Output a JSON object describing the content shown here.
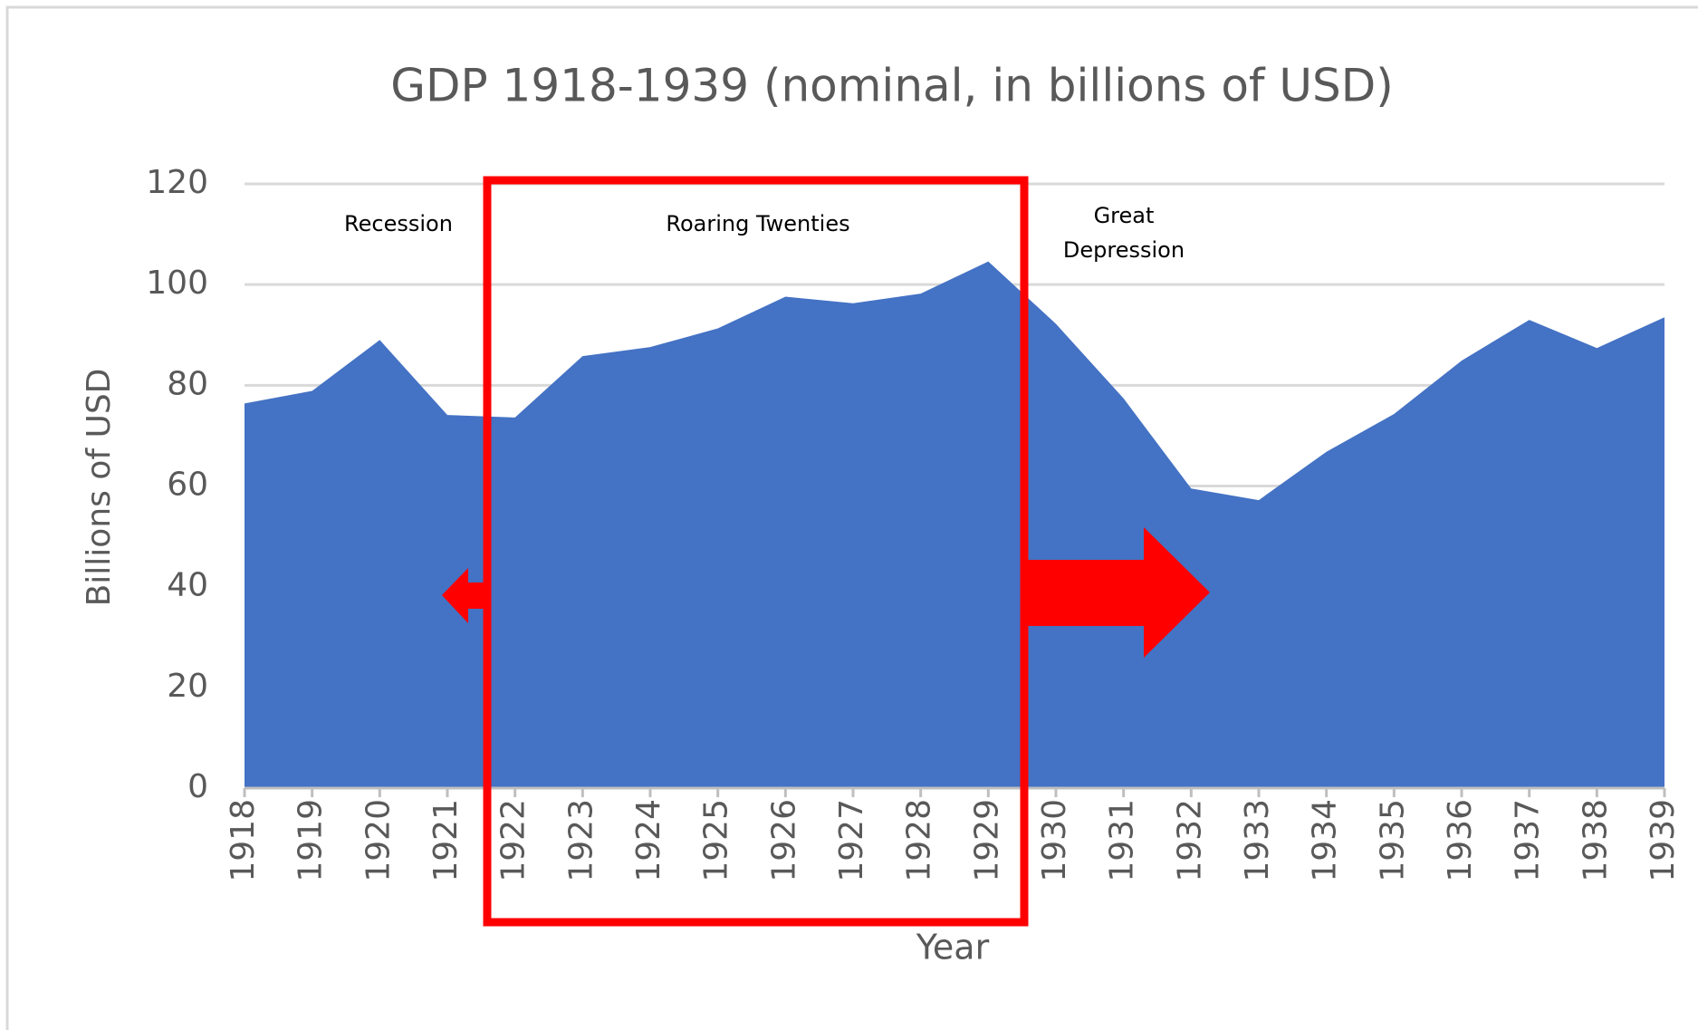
{
  "chart_data": {
    "type": "area",
    "title": "GDP 1918-1939 (nominal, in billions of USD)",
    "x_label": "Year",
    "y_label": "Billions of USD",
    "x": [
      1918,
      1919,
      1920,
      1921,
      1922,
      1923,
      1924,
      1925,
      1926,
      1927,
      1928,
      1929,
      1930,
      1931,
      1932,
      1933,
      1934,
      1935,
      1936,
      1937,
      1938,
      1939
    ],
    "series": [
      {
        "name": "GDP",
        "color": "#4472c4",
        "values": [
          76.4,
          78.9,
          89,
          74.1,
          73.6,
          85.8,
          87.6,
          91.3,
          97.6,
          96.3,
          98.2,
          104.6,
          92.2,
          77.4,
          59.5,
          57.2,
          66.8,
          74.3,
          84.9,
          93,
          87.4,
          93.5
        ]
      }
    ],
    "xlim": [
      1918,
      1939
    ],
    "xticks": [
      1918,
      1919,
      1920,
      1921,
      1922,
      1923,
      1924,
      1925,
      1926,
      1927,
      1928,
      1929,
      1930,
      1931,
      1932,
      1933,
      1934,
      1935,
      1936,
      1937,
      1938,
      1939
    ],
    "ylim": [
      0,
      120
    ],
    "yticks": [
      0,
      20,
      40,
      60,
      80,
      100,
      120
    ],
    "grid": true,
    "annotations": [
      {
        "lines": [
          "Recession"
        ]
      },
      {
        "lines": [
          "Roaring Twenties"
        ]
      },
      {
        "lines": [
          "Great",
          "Depression"
        ]
      }
    ]
  }
}
